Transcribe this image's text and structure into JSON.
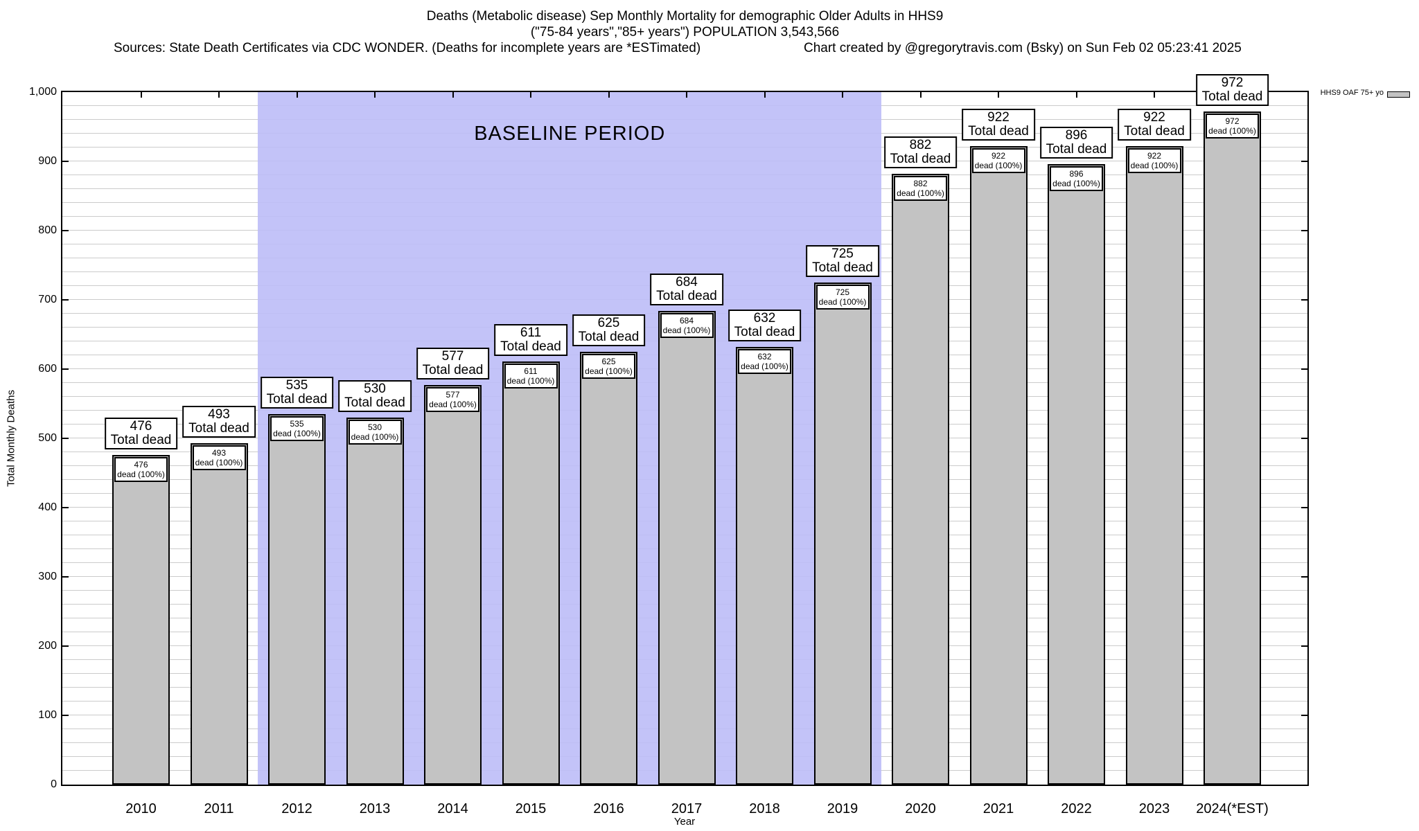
{
  "header": {
    "title_line1": "Deaths (Metabolic disease) Sep Monthly Mortality for demographic Older Adults in HHS9",
    "title_line2": "(\"75-84 years\",\"85+ years\") POPULATION 3,543,566",
    "sources": "Sources: State Death Certificates via CDC WONDER. (Deaths for incomplete years are *ESTimated)",
    "credit": "Chart created by @gregorytravis.com (Bsky) on Sun Feb 02 05:23:41 2025"
  },
  "legend": {
    "label": "HHS9 OAF 75+ yo",
    "swatch_color": "#c3c3c3",
    "position": "top-right-outside-plot"
  },
  "chart_data": {
    "type": "bar",
    "title": "Deaths (Metabolic disease) Sep Monthly Mortality for demographic Older Adults in HHS9",
    "xlabel": "Year",
    "ylabel": "Total Monthly Deaths",
    "ylim": [
      0,
      1000
    ],
    "ytick_interval": 100,
    "minor_grid_interval": 20,
    "grid": true,
    "ytick_labels": [
      "0",
      "100",
      "200",
      "300",
      "400",
      "500",
      "600",
      "700",
      "800",
      "900",
      "1,000"
    ],
    "categories": [
      "2010",
      "2011",
      "2012",
      "2013",
      "2014",
      "2015",
      "2016",
      "2017",
      "2018",
      "2019",
      "2020",
      "2021",
      "2022",
      "2023",
      "2024(*EST)"
    ],
    "series": [
      {
        "name": "HHS9 OAF 75+ yo",
        "values": [
          476,
          493,
          535,
          530,
          577,
          611,
          625,
          684,
          632,
          725,
          882,
          922,
          896,
          922,
          972
        ]
      }
    ],
    "bar_top_label_template": [
      "{value}",
      "Total dead"
    ],
    "bar_inner_label_template": [
      "{value}",
      "dead (100%)"
    ],
    "baseline": {
      "label": "BASELINE PERIOD",
      "from_year": "2012",
      "to_year": "2019",
      "color": "#bdbdf7"
    },
    "colors": {
      "bar_fill": "#c3c3c3",
      "bar_border": "#000000",
      "grid": "#cbcbcb",
      "baseline_fill": "#bdbdf7",
      "axis": "#000000"
    }
  }
}
